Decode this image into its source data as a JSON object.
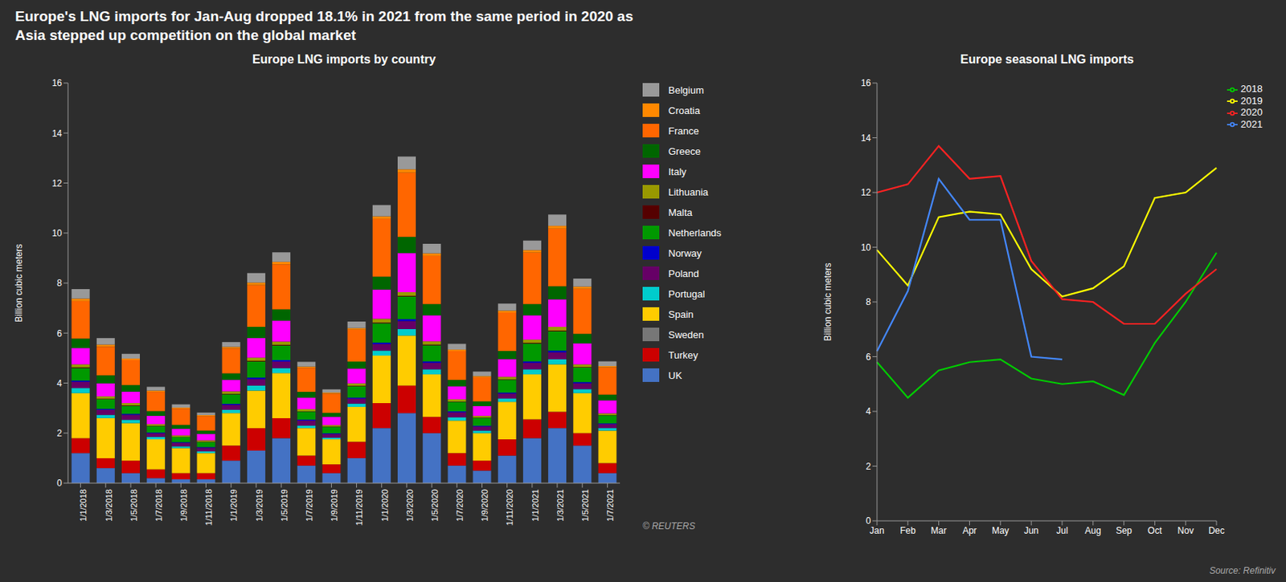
{
  "title": "Europe's LNG imports for Jan-Aug dropped 18.1% in 2021 from the same period in 2020 as\nAsia stepped up competition on the global market",
  "annotations": [
    "© REUTERS",
    "Source: Refinitiv"
  ],
  "chart_data": [
    {
      "type": "bar",
      "title": "Europe LNG imports by country",
      "stacked": true,
      "grid": false,
      "legend": "right",
      "ylabel": "Billion cubic meters",
      "ylim": [
        0,
        16
      ],
      "yticks": [
        0,
        2,
        4,
        6,
        8,
        10,
        12,
        14,
        16
      ],
      "categories": [
        "1/1/2018",
        "1/3/2018",
        "1/5/2018",
        "1/7/2018",
        "1/9/2018",
        "1/11/2018",
        "1/1/2019",
        "1/3/2019",
        "1/5/2019",
        "1/7/2019",
        "1/9/2019",
        "1/11/2019",
        "1/1/2020",
        "1/3/2020",
        "1/5/2020",
        "1/7/2020",
        "1/9/2020",
        "1/11/2020",
        "1/1/2021",
        "1/3/2021",
        "1/5/2021",
        "1/7/2021"
      ],
      "series": [
        {
          "name": "UK",
          "color": "#4472c4",
          "values": [
            1.2,
            0.6,
            0.4,
            0.2,
            0.15,
            0.15,
            0.9,
            1.3,
            1.8,
            0.7,
            0.4,
            1.0,
            2.2,
            2.8,
            2.0,
            0.7,
            0.5,
            1.1,
            1.8,
            2.2,
            1.5,
            0.4
          ]
        },
        {
          "name": "Turkey",
          "color": "#cc0000",
          "values": [
            0.6,
            0.4,
            0.5,
            0.35,
            0.25,
            0.25,
            0.6,
            0.9,
            0.8,
            0.4,
            0.35,
            0.65,
            1.0,
            1.1,
            0.65,
            0.5,
            0.4,
            0.65,
            0.75,
            0.65,
            0.5,
            0.4
          ]
        },
        {
          "name": "Sweden",
          "color": "#777777",
          "values": [
            null,
            null,
            null,
            null,
            null,
            null,
            null,
            null,
            null,
            null,
            null,
            null,
            null,
            null,
            null,
            null,
            null,
            null,
            null,
            null,
            null,
            null
          ]
        },
        {
          "name": "Spain",
          "color": "#ffcc00",
          "values": [
            1.8,
            1.6,
            1.5,
            1.2,
            1.0,
            0.8,
            1.3,
            1.5,
            1.8,
            1.1,
            1.0,
            1.4,
            1.9,
            2.0,
            1.7,
            1.3,
            1.1,
            1.5,
            1.8,
            1.9,
            1.6,
            1.3
          ]
        },
        {
          "name": "Portugal",
          "color": "#00cccc",
          "values": [
            0.2,
            0.13,
            0.13,
            0.1,
            0.07,
            0.07,
            0.13,
            0.2,
            0.2,
            0.1,
            0.07,
            0.13,
            0.2,
            0.26,
            0.2,
            0.13,
            0.1,
            0.13,
            0.2,
            0.2,
            0.16,
            0.1
          ]
        },
        {
          "name": "Poland",
          "color": "#660066",
          "values": [
            0.25,
            0.2,
            0.2,
            0.14,
            0.14,
            0.14,
            0.2,
            0.26,
            0.26,
            0.2,
            0.14,
            0.2,
            0.26,
            0.32,
            0.26,
            0.2,
            0.16,
            0.2,
            0.26,
            0.28,
            0.23,
            0.16
          ]
        },
        {
          "name": "Norway",
          "color": "#0000cc",
          "values": [
            0.05,
            0.04,
            0.04,
            0.03,
            0.03,
            0.03,
            0.04,
            0.06,
            0.06,
            0.04,
            0.03,
            0.04,
            0.06,
            0.08,
            0.06,
            0.04,
            0.03,
            0.04,
            0.06,
            0.07,
            0.05,
            0.03
          ]
        },
        {
          "name": "Netherlands",
          "color": "#009900",
          "values": [
            0.5,
            0.38,
            0.32,
            0.26,
            0.2,
            0.2,
            0.38,
            0.64,
            0.58,
            0.32,
            0.26,
            0.45,
            0.77,
            0.9,
            0.64,
            0.38,
            0.32,
            0.51,
            0.71,
            0.77,
            0.58,
            0.32
          ]
        },
        {
          "name": "Malta",
          "color": "#550000",
          "values": [
            0.03,
            0.02,
            0.02,
            0.01,
            0.01,
            0.01,
            0.02,
            0.03,
            0.03,
            0.01,
            0.01,
            0.02,
            0.03,
            0.03,
            0.03,
            0.01,
            0.01,
            0.02,
            0.03,
            0.03,
            0.02,
            0.01
          ]
        },
        {
          "name": "Lithuania",
          "color": "#999900",
          "values": [
            0.12,
            0.1,
            0.09,
            0.07,
            0.06,
            0.06,
            0.1,
            0.13,
            0.13,
            0.09,
            0.06,
            0.1,
            0.15,
            0.15,
            0.13,
            0.09,
            0.07,
            0.1,
            0.13,
            0.15,
            0.11,
            0.07
          ]
        },
        {
          "name": "Italy",
          "color": "#ff00ff",
          "values": [
            0.65,
            0.52,
            0.46,
            0.33,
            0.26,
            0.26,
            0.46,
            0.78,
            0.84,
            0.46,
            0.33,
            0.59,
            1.17,
            1.56,
            1.04,
            0.52,
            0.39,
            0.71,
            0.97,
            1.1,
            0.84,
            0.52
          ]
        },
        {
          "name": "Greece",
          "color": "#006600",
          "values": [
            0.38,
            0.32,
            0.26,
            0.19,
            0.16,
            0.13,
            0.26,
            0.45,
            0.45,
            0.23,
            0.16,
            0.28,
            0.52,
            0.65,
            0.45,
            0.26,
            0.19,
            0.32,
            0.45,
            0.52,
            0.38,
            0.23
          ]
        },
        {
          "name": "France",
          "color": "#ff6600",
          "values": [
            1.5,
            1.15,
            1.0,
            0.77,
            0.65,
            0.58,
            1.0,
            1.67,
            1.8,
            0.96,
            0.77,
            1.28,
            2.31,
            2.57,
            1.93,
            1.15,
            0.96,
            1.54,
            2.06,
            2.31,
            1.8,
            1.09
          ]
        },
        {
          "name": "Croatia",
          "color": "#ff8800",
          "values": [
            0.1,
            0.08,
            0.06,
            0.05,
            0.04,
            0.04,
            0.06,
            0.1,
            0.1,
            0.05,
            0.04,
            0.06,
            0.1,
            0.13,
            0.1,
            0.06,
            0.05,
            0.08,
            0.1,
            0.11,
            0.09,
            0.05
          ]
        },
        {
          "name": "Belgium",
          "color": "#999999",
          "values": [
            0.38,
            0.26,
            0.19,
            0.15,
            0.13,
            0.1,
            0.19,
            0.38,
            0.38,
            0.19,
            0.13,
            0.26,
            0.45,
            0.51,
            0.38,
            0.23,
            0.18,
            0.28,
            0.38,
            0.45,
            0.32,
            0.19
          ]
        }
      ]
    },
    {
      "type": "line",
      "title": "Europe seasonal LNG imports",
      "grid": false,
      "legend": "upper right",
      "ylabel": "Billion cubic meters",
      "ylim": [
        0,
        16
      ],
      "yticks": [
        0,
        2,
        4,
        6,
        8,
        10,
        12,
        14,
        16
      ],
      "categories": [
        "Jan",
        "Feb",
        "Mar",
        "Apr",
        "May",
        "Jun",
        "Jul",
        "Aug",
        "Sep",
        "Oct",
        "Nov",
        "Dec"
      ],
      "series": [
        {
          "name": "2018",
          "color": "#00cc00",
          "values": [
            5.8,
            4.5,
            5.5,
            5.8,
            5.9,
            5.2,
            5.0,
            5.1,
            4.6,
            6.5,
            8.0,
            9.8
          ]
        },
        {
          "name": "2019",
          "color": "#ffff00",
          "values": [
            9.9,
            8.6,
            11.1,
            11.3,
            11.2,
            9.2,
            8.2,
            8.5,
            9.3,
            11.8,
            12.0,
            12.9
          ]
        },
        {
          "name": "2020",
          "color": "#ff2222",
          "values": [
            12.0,
            12.3,
            13.7,
            12.5,
            12.6,
            9.5,
            8.1,
            8.0,
            7.2,
            7.2,
            8.3,
            9.2
          ]
        },
        {
          "name": "2021",
          "color": "#4488ff",
          "values": [
            6.2,
            8.4,
            12.5,
            11.0,
            11.0,
            6.0,
            5.9,
            null,
            null,
            null,
            null,
            null
          ]
        }
      ]
    }
  ]
}
